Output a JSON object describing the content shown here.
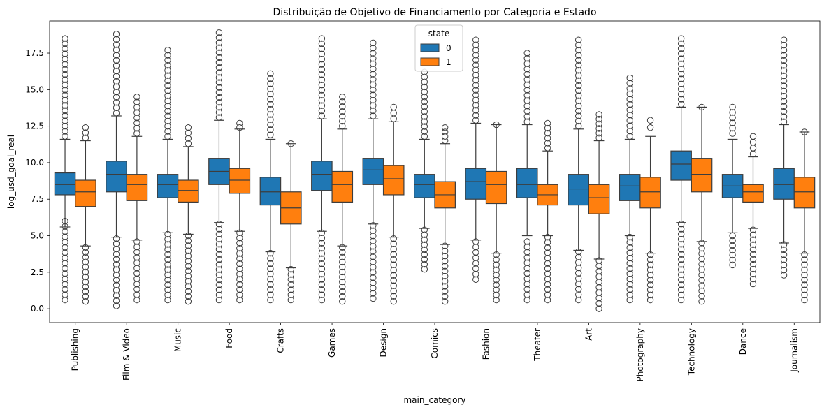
{
  "chart_data": {
    "type": "box",
    "title": "Distribuição de Objetivo de Financiamento por Categoria e Estado",
    "xlabel": "main_category",
    "ylabel": "log_usd_goal_real",
    "ylim": [
      -0.95,
      19.7
    ],
    "yticks": [
      0.0,
      2.5,
      5.0,
      7.5,
      10.0,
      12.5,
      15.0,
      17.5
    ],
    "ytick_labels": [
      "0.0",
      "2.5",
      "5.0",
      "7.5",
      "10.0",
      "12.5",
      "15.0",
      "17.5"
    ],
    "grid": false,
    "legend": {
      "title": "state",
      "placement": "top-center"
    },
    "categories": [
      "Publishing",
      "Film & Video",
      "Music",
      "Food",
      "Crafts",
      "Games",
      "Design",
      "Comics",
      "Fashion",
      "Theater",
      "Art",
      "Photography",
      "Technology",
      "Dance",
      "Journalism"
    ],
    "series": [
      {
        "name": "0",
        "color": "#1f77b4",
        "boxes": [
          {
            "whislo": 5.6,
            "q1": 7.8,
            "med": 8.5,
            "q3": 9.3,
            "whishi": 11.6,
            "outlier_lo": [
              0.6,
              6.0
            ],
            "outlier_hi": [
              11.8,
              18.5
            ]
          },
          {
            "whislo": 4.9,
            "q1": 8.0,
            "med": 9.2,
            "q3": 10.1,
            "whishi": 13.2,
            "outlier_lo": [
              0.2,
              4.8
            ],
            "outlier_hi": [
              13.4,
              18.8
            ]
          },
          {
            "whislo": 5.2,
            "q1": 7.6,
            "med": 8.5,
            "q3": 9.2,
            "whishi": 11.6,
            "outlier_lo": [
              0.6,
              5.1
            ],
            "outlier_hi": [
              11.8,
              17.7
            ]
          },
          {
            "whislo": 5.9,
            "q1": 8.5,
            "med": 9.4,
            "q3": 10.3,
            "whishi": 12.9,
            "outlier_lo": [
              0.6,
              5.8
            ],
            "outlier_hi": [
              13.1,
              18.9
            ]
          },
          {
            "whislo": 3.9,
            "q1": 7.1,
            "med": 8.0,
            "q3": 9.0,
            "whishi": 11.6,
            "outlier_lo": [
              0.6,
              3.8
            ],
            "outlier_hi": [
              11.9,
              16.1
            ]
          },
          {
            "whislo": 5.3,
            "q1": 8.1,
            "med": 9.2,
            "q3": 10.1,
            "whishi": 13.0,
            "outlier_lo": [
              0.6,
              5.2
            ],
            "outlier_hi": [
              13.2,
              18.5
            ]
          },
          {
            "whislo": 5.8,
            "q1": 8.5,
            "med": 9.5,
            "q3": 10.3,
            "whishi": 13.0,
            "outlier_lo": [
              0.7,
              5.7
            ],
            "outlier_hi": [
              13.2,
              18.2
            ]
          },
          {
            "whislo": 5.5,
            "q1": 7.6,
            "med": 8.5,
            "q3": 9.2,
            "whishi": 11.6,
            "outlier_lo": [
              2.7,
              5.4
            ],
            "outlier_hi": [
              11.8,
              16.2
            ]
          },
          {
            "whislo": 4.7,
            "q1": 7.5,
            "med": 8.7,
            "q3": 9.6,
            "whishi": 12.7,
            "outlier_lo": [
              2.0,
              4.6
            ],
            "outlier_hi": [
              12.9,
              18.4
            ]
          },
          {
            "whislo": 5.0,
            "q1": 7.6,
            "med": 8.5,
            "q3": 9.6,
            "whishi": 12.6,
            "outlier_lo": [
              0.6,
              4.6
            ],
            "outlier_hi": [
              12.8,
              17.5
            ]
          },
          {
            "whislo": 4.0,
            "q1": 7.1,
            "med": 8.2,
            "q3": 9.2,
            "whishi": 12.3,
            "outlier_lo": [
              0.6,
              3.9
            ],
            "outlier_hi": [
              12.5,
              18.4
            ]
          },
          {
            "whislo": 5.0,
            "q1": 7.4,
            "med": 8.4,
            "q3": 9.2,
            "whishi": 11.6,
            "outlier_lo": [
              0.6,
              4.9
            ],
            "outlier_hi": [
              11.8,
              15.8
            ]
          },
          {
            "whislo": 5.9,
            "q1": 8.8,
            "med": 9.9,
            "q3": 10.8,
            "whishi": 13.8,
            "outlier_lo": [
              0.6,
              5.8
            ],
            "outlier_hi": [
              14.0,
              18.5
            ]
          },
          {
            "whislo": 5.2,
            "q1": 7.6,
            "med": 8.4,
            "q3": 9.2,
            "whishi": 11.6,
            "outlier_lo": [
              3.0,
              5.0
            ],
            "outlier_hi": [
              12.0,
              13.8
            ]
          },
          {
            "whislo": 4.5,
            "q1": 7.5,
            "med": 8.5,
            "q3": 9.6,
            "whishi": 12.6,
            "outlier_lo": [
              2.3,
              4.4
            ],
            "outlier_hi": [
              12.8,
              18.4
            ]
          }
        ]
      },
      {
        "name": "1",
        "color": "#ff7f0e",
        "boxes": [
          {
            "whislo": 4.3,
            "q1": 7.0,
            "med": 8.0,
            "q3": 8.8,
            "whishi": 11.5,
            "outlier_lo": [
              0.5,
              4.2
            ],
            "outlier_hi": [
              11.7,
              12.4
            ]
          },
          {
            "whislo": 4.7,
            "q1": 7.4,
            "med": 8.5,
            "q3": 9.2,
            "whishi": 11.8,
            "outlier_lo": [
              0.6,
              4.6
            ],
            "outlier_hi": [
              12.0,
              14.5
            ]
          },
          {
            "whislo": 5.1,
            "q1": 7.3,
            "med": 8.1,
            "q3": 8.8,
            "whishi": 11.1,
            "outlier_lo": [
              0.5,
              5.0
            ],
            "outlier_hi": [
              11.3,
              12.4
            ]
          },
          {
            "whislo": 5.3,
            "q1": 7.9,
            "med": 8.8,
            "q3": 9.6,
            "whishi": 12.3,
            "outlier_lo": [
              0.6,
              5.2
            ],
            "outlier_hi": [
              12.4,
              12.7
            ]
          },
          {
            "whislo": 2.8,
            "q1": 5.8,
            "med": 6.9,
            "q3": 8.0,
            "whishi": 11.3,
            "outlier_lo": [
              0.6,
              2.7
            ],
            "outlier_hi": [
              11.3,
              11.3
            ]
          },
          {
            "whislo": 4.3,
            "q1": 7.3,
            "med": 8.5,
            "q3": 9.4,
            "whishi": 12.3,
            "outlier_lo": [
              0.5,
              4.2
            ],
            "outlier_hi": [
              12.5,
              14.5
            ]
          },
          {
            "whislo": 4.9,
            "q1": 7.8,
            "med": 8.9,
            "q3": 9.8,
            "whishi": 12.8,
            "outlier_lo": [
              0.5,
              4.8
            ],
            "outlier_hi": [
              13.0,
              13.8
            ]
          },
          {
            "whislo": 4.4,
            "q1": 6.9,
            "med": 7.8,
            "q3": 8.7,
            "whishi": 11.3,
            "outlier_lo": [
              0.5,
              4.3
            ],
            "outlier_hi": [
              11.5,
              12.4
            ]
          },
          {
            "whislo": 3.8,
            "q1": 7.2,
            "med": 8.5,
            "q3": 9.4,
            "whishi": 12.6,
            "outlier_lo": [
              0.6,
              3.7
            ],
            "outlier_hi": [
              12.6,
              12.6
            ]
          },
          {
            "whislo": 5.0,
            "q1": 7.1,
            "med": 7.8,
            "q3": 8.5,
            "whishi": 10.8,
            "outlier_lo": [
              0.6,
              4.9
            ],
            "outlier_hi": [
              11.0,
              12.7
            ]
          },
          {
            "whislo": 3.4,
            "q1": 6.5,
            "med": 7.6,
            "q3": 8.5,
            "whishi": 11.5,
            "outlier_lo": [
              0.0,
              3.3
            ],
            "outlier_hi": [
              11.7,
              13.3
            ]
          },
          {
            "whislo": 3.8,
            "q1": 6.9,
            "med": 8.0,
            "q3": 9.0,
            "whishi": 11.8,
            "outlier_lo": [
              0.6,
              3.7
            ],
            "outlier_hi": [
              12.4,
              12.9
            ]
          },
          {
            "whislo": 4.6,
            "q1": 8.0,
            "med": 9.2,
            "q3": 10.3,
            "whishi": 13.8,
            "outlier_lo": [
              0.5,
              4.5
            ],
            "outlier_hi": [
              13.8,
              13.8
            ]
          },
          {
            "whislo": 5.5,
            "q1": 7.3,
            "med": 8.0,
            "q3": 8.5,
            "whishi": 10.4,
            "outlier_lo": [
              1.7,
              5.4
            ],
            "outlier_hi": [
              10.6,
              11.8
            ]
          },
          {
            "whislo": 3.8,
            "q1": 6.9,
            "med": 8.0,
            "q3": 9.0,
            "whishi": 12.1,
            "outlier_lo": [
              0.6,
              3.7
            ],
            "outlier_hi": [
              12.1,
              12.1
            ]
          }
        ]
      }
    ]
  }
}
